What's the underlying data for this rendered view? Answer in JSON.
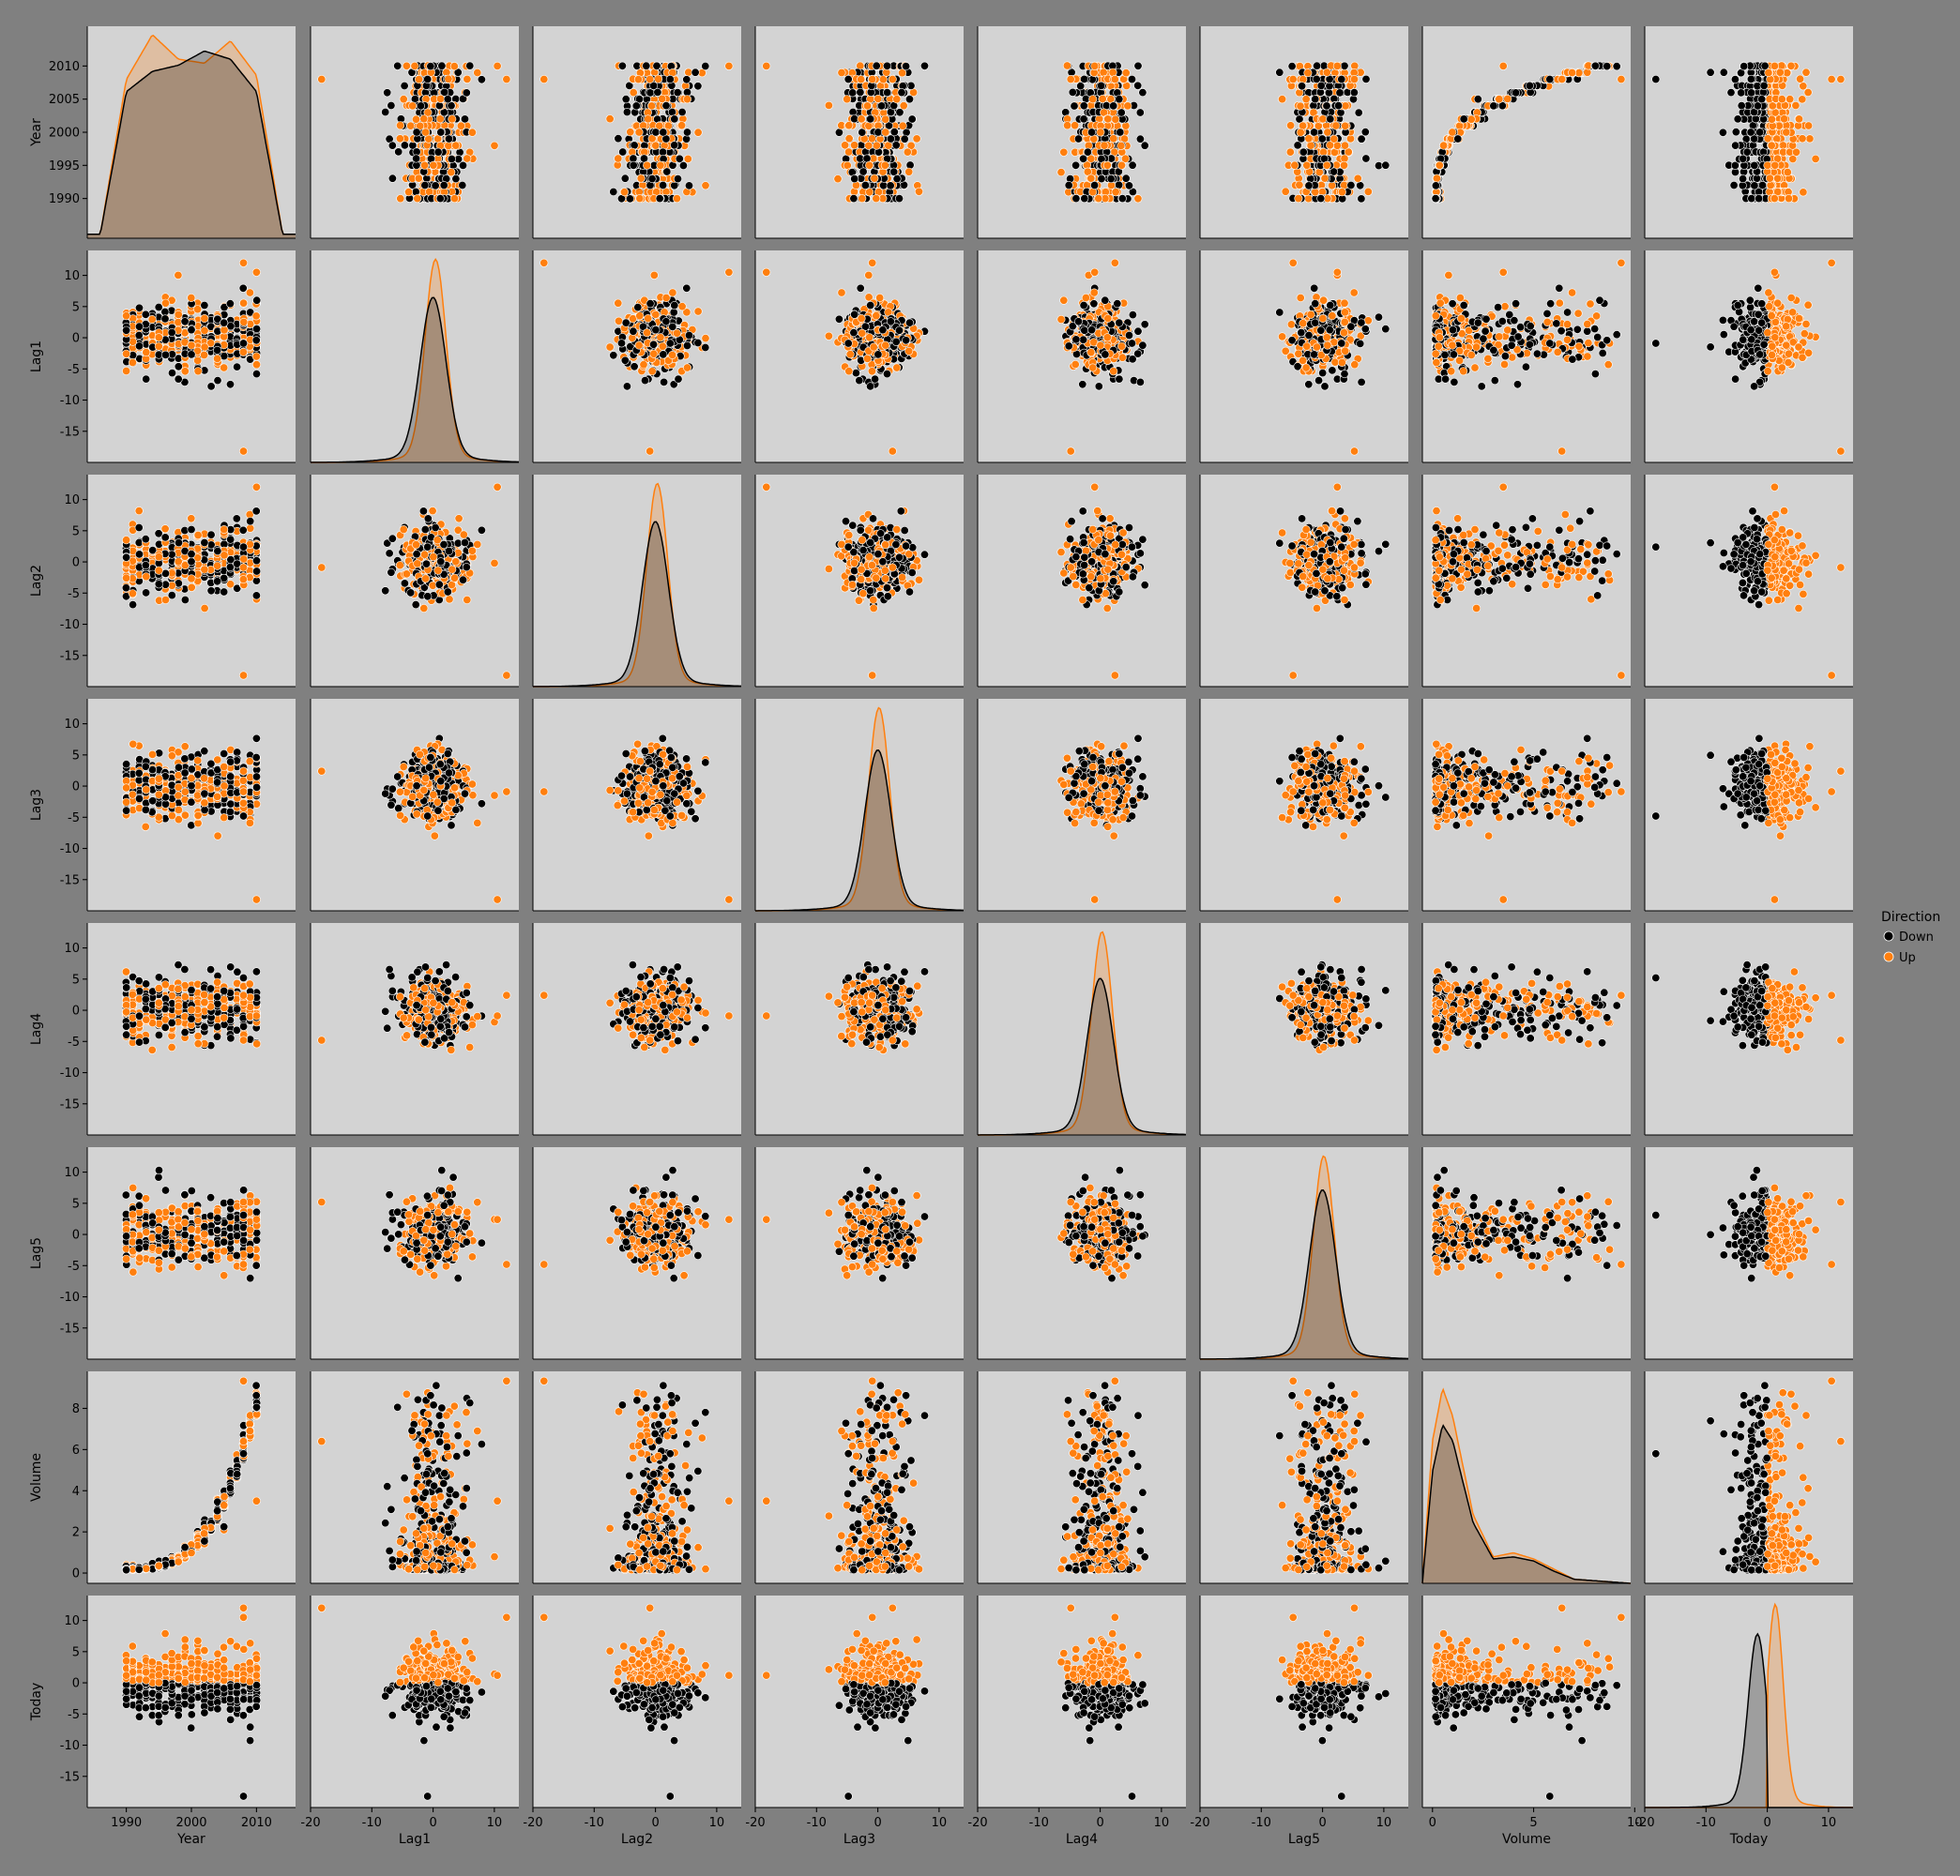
{
  "chart_data": {
    "type": "scatter",
    "kind": "pairplot",
    "variables": [
      "Year",
      "Lag1",
      "Lag2",
      "Lag3",
      "Lag4",
      "Lag5",
      "Volume",
      "Today"
    ],
    "hue": "Direction",
    "diagonal": "kde",
    "legend": {
      "title": "Direction",
      "position": "right",
      "items": [
        {
          "label": "Down",
          "color": "#000000"
        },
        {
          "label": "Up",
          "color": "#ff7f0e"
        }
      ]
    },
    "axes": {
      "Year": {
        "label": "Year",
        "range": [
          1984,
          2016
        ],
        "ticks": [
          1990,
          1995,
          2000,
          2005,
          2010
        ],
        "xticks": [
          1990,
          2000,
          2010
        ]
      },
      "Lag1": {
        "label": "Lag1",
        "range": [
          -20,
          14
        ],
        "ticks": [
          -15,
          -10,
          -5,
          0,
          5,
          10
        ],
        "xticks": [
          -20,
          -10,
          0,
          10
        ]
      },
      "Lag2": {
        "label": "Lag2",
        "range": [
          -20,
          14
        ],
        "ticks": [
          -15,
          -10,
          -5,
          0,
          5,
          10
        ],
        "xticks": [
          -20,
          -10,
          0,
          10
        ]
      },
      "Lag3": {
        "label": "Lag3",
        "range": [
          -20,
          14
        ],
        "ticks": [
          -15,
          -10,
          -5,
          0,
          5,
          10
        ],
        "xticks": [
          -20,
          -10,
          0,
          10
        ]
      },
      "Lag4": {
        "label": "Lag4",
        "range": [
          -20,
          14
        ],
        "ticks": [
          -15,
          -10,
          -5,
          0,
          5,
          10
        ],
        "xticks": [
          -20,
          -10,
          0,
          10
        ]
      },
      "Lag5": {
        "label": "Lag5",
        "range": [
          -20,
          14
        ],
        "ticks": [
          -15,
          -10,
          -5,
          0,
          5,
          10
        ],
        "xticks": [
          -20,
          -10,
          0,
          10
        ]
      },
      "Volume": {
        "label": "Volume",
        "range": [
          -0.5,
          9.8
        ],
        "ticks": [
          0,
          2,
          4,
          6,
          8
        ],
        "xticks": [
          0,
          5,
          10
        ]
      },
      "Today": {
        "label": "Today",
        "range": [
          -20,
          14
        ],
        "ticks": [
          -15,
          -10,
          -5,
          0,
          5,
          10
        ],
        "xticks": [
          -20,
          -10,
          0,
          10
        ]
      }
    },
    "series": [
      {
        "name": "Down",
        "color": "#000000"
      },
      {
        "name": "Up",
        "color": "#ff7f0e"
      }
    ],
    "sample_rows": [
      {
        "Year": 1990,
        "Lag1": 0.816,
        "Lag2": 1.572,
        "Lag3": -3.936,
        "Lag4": -0.229,
        "Lag5": -3.484,
        "Volume": 0.155,
        "Today": -0.27,
        "Direction": "Down"
      },
      {
        "Year": 1990,
        "Lag1": -0.27,
        "Lag2": 0.816,
        "Lag3": 1.572,
        "Lag4": -3.936,
        "Lag5": -0.229,
        "Volume": 0.149,
        "Today": -2.576,
        "Direction": "Down"
      },
      {
        "Year": 1990,
        "Lag1": -2.576,
        "Lag2": -0.27,
        "Lag3": 0.816,
        "Lag4": 1.572,
        "Lag5": -3.936,
        "Volume": 0.16,
        "Today": 3.514,
        "Direction": "Up"
      },
      {
        "Year": 1990,
        "Lag1": 3.514,
        "Lag2": -2.576,
        "Lag3": -0.27,
        "Lag4": 0.816,
        "Lag5": 1.572,
        "Volume": 0.162,
        "Today": 0.712,
        "Direction": "Up"
      },
      {
        "Year": 1990,
        "Lag1": 0.712,
        "Lag2": 3.514,
        "Lag3": -2.576,
        "Lag4": -0.27,
        "Lag5": 0.816,
        "Volume": 0.154,
        "Today": 1.178,
        "Direction": "Up"
      },
      {
        "Year": 1990,
        "Lag1": 1.178,
        "Lag2": 0.712,
        "Lag3": 3.514,
        "Lag4": -2.576,
        "Lag5": -0.27,
        "Volume": 0.154,
        "Today": -1.372,
        "Direction": "Down"
      },
      {
        "Year": 1995,
        "Lag1": -1.372,
        "Lag2": 1.178,
        "Lag3": 0.712,
        "Lag4": 3.514,
        "Lag5": -2.576,
        "Volume": 0.3,
        "Today": 0.807,
        "Direction": "Up"
      },
      {
        "Year": 1995,
        "Lag1": 0.807,
        "Lag2": -1.372,
        "Lag3": 1.178,
        "Lag4": 0.712,
        "Lag5": 3.514,
        "Volume": 0.32,
        "Today": 0.041,
        "Direction": "Up"
      },
      {
        "Year": 1995,
        "Lag1": 0.041,
        "Lag2": 0.807,
        "Lag3": -1.372,
        "Lag4": 1.178,
        "Lag5": 0.712,
        "Volume": 0.35,
        "Today": 1.253,
        "Direction": "Up"
      },
      {
        "Year": 2000,
        "Lag1": 1.253,
        "Lag2": 0.041,
        "Lag3": 0.807,
        "Lag4": -1.372,
        "Lag5": 1.178,
        "Volume": 1.01,
        "Today": -2.678,
        "Direction": "Down"
      },
      {
        "Year": 2000,
        "Lag1": -2.678,
        "Lag2": 1.253,
        "Lag3": 0.041,
        "Lag4": 0.807,
        "Lag5": -1.372,
        "Volume": 1.05,
        "Today": -1.205,
        "Direction": "Down"
      },
      {
        "Year": 2000,
        "Lag1": -1.205,
        "Lag2": -2.678,
        "Lag3": 1.253,
        "Lag4": 0.041,
        "Lag5": 0.807,
        "Volume": 0.98,
        "Today": 3.1,
        "Direction": "Up"
      },
      {
        "Year": 2002,
        "Lag1": 3.1,
        "Lag2": -1.205,
        "Lag3": -2.678,
        "Lag4": 1.253,
        "Lag5": 0.041,
        "Volume": 1.42,
        "Today": 5.2,
        "Direction": "Up"
      },
      {
        "Year": 2002,
        "Lag1": 5.2,
        "Lag2": 3.1,
        "Lag3": -1.205,
        "Lag4": -2.678,
        "Lag5": 1.253,
        "Volume": 1.55,
        "Today": -4.8,
        "Direction": "Down"
      },
      {
        "Year": 2005,
        "Lag1": -4.8,
        "Lag2": 5.2,
        "Lag3": 3.1,
        "Lag4": -1.205,
        "Lag5": -2.678,
        "Volume": 2.1,
        "Today": 2.4,
        "Direction": "Up"
      },
      {
        "Year": 2005,
        "Lag1": 2.4,
        "Lag2": -4.8,
        "Lag3": 5.2,
        "Lag4": 3.1,
        "Lag5": -1.205,
        "Volume": 2.25,
        "Today": -0.9,
        "Direction": "Down"
      },
      {
        "Year": 2008,
        "Lag1": -0.9,
        "Lag2": 2.4,
        "Lag3": -4.8,
        "Lag4": 5.2,
        "Lag5": 3.1,
        "Volume": 5.8,
        "Today": -18.2,
        "Direction": "Down"
      },
      {
        "Year": 2008,
        "Lag1": -18.2,
        "Lag2": -0.9,
        "Lag3": 2.4,
        "Lag4": -4.8,
        "Lag5": 5.2,
        "Volume": 6.4,
        "Today": 12.0,
        "Direction": "Up"
      },
      {
        "Year": 2008,
        "Lag1": 12.0,
        "Lag2": -18.2,
        "Lag3": -0.9,
        "Lag4": 2.4,
        "Lag5": -4.8,
        "Volume": 9.33,
        "Today": 10.5,
        "Direction": "Up"
      },
      {
        "Year": 2010,
        "Lag1": 10.5,
        "Lag2": 12.0,
        "Lag3": -18.2,
        "Lag4": -0.9,
        "Lag5": 2.4,
        "Volume": 3.5,
        "Today": 1.2,
        "Direction": "Up"
      }
    ],
    "kde": {
      "Year": {
        "x": [
          1986,
          1990,
          1994,
          1998,
          2002,
          2006,
          2010,
          2014
        ],
        "Down": [
          0.02,
          0.72,
          0.82,
          0.85,
          0.92,
          0.88,
          0.72,
          0.02
        ],
        "Up": [
          0.02,
          0.78,
          1.0,
          0.88,
          0.86,
          0.97,
          0.8,
          0.02
        ]
      },
      "Lag1": {
        "Down": {
          "mean": 0.0,
          "sd": 2.1,
          "peak": 0.78
        },
        "Up": {
          "mean": 0.4,
          "sd": 1.7,
          "peak": 0.96
        }
      },
      "Lag2": {
        "Down": {
          "mean": 0.0,
          "sd": 2.1,
          "peak": 0.78
        },
        "Up": {
          "mean": 0.3,
          "sd": 1.7,
          "peak": 0.96
        }
      },
      "Lag3": {
        "Down": {
          "mean": 0.0,
          "sd": 2.1,
          "peak": 0.76
        },
        "Up": {
          "mean": 0.2,
          "sd": 1.7,
          "peak": 0.96
        }
      },
      "Lag4": {
        "Down": {
          "mean": 0.0,
          "sd": 2.1,
          "peak": 0.74
        },
        "Up": {
          "mean": 0.3,
          "sd": 1.7,
          "peak": 0.96
        }
      },
      "Lag5": {
        "Down": {
          "mean": 0.0,
          "sd": 2.1,
          "peak": 0.8
        },
        "Up": {
          "mean": 0.2,
          "sd": 1.7,
          "peak": 0.96
        }
      },
      "Volume": {
        "x": [
          -0.5,
          0,
          0.5,
          1,
          2,
          3,
          4,
          5,
          6,
          7,
          9.8
        ],
        "Down": [
          0.0,
          0.55,
          0.78,
          0.7,
          0.3,
          0.12,
          0.13,
          0.11,
          0.06,
          0.02,
          0.0
        ],
        "Up": [
          0.0,
          0.7,
          0.96,
          0.82,
          0.34,
          0.13,
          0.15,
          0.12,
          0.07,
          0.02,
          0.0
        ]
      },
      "Today": {
        "Down": {
          "mean": -1.6,
          "sd": 1.5,
          "peak": 0.82,
          "max": 0.0
        },
        "Up": {
          "mean": 1.3,
          "sd": 1.3,
          "peak": 0.96,
          "min": 0.0
        }
      }
    }
  }
}
